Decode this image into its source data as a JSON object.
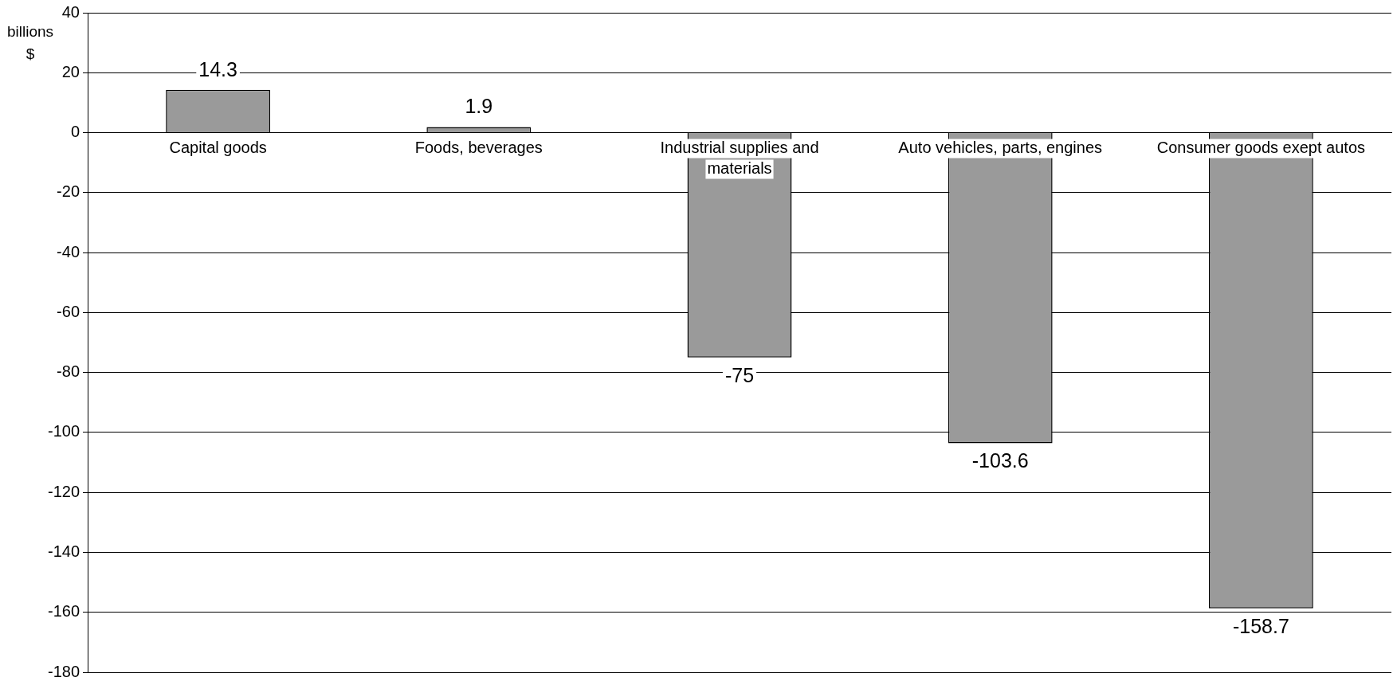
{
  "chart_data": {
    "type": "bar",
    "ylabel": "billions $",
    "categories": [
      "Capital goods",
      "Foods, beverages",
      "Industrial supplies and materials",
      "Auto vehicles, parts, engines",
      "Consumer goods exept autos"
    ],
    "values": [
      14.3,
      1.9,
      -75,
      -103.6,
      -158.7
    ],
    "color": "#9a9a9a",
    "ylim": [
      -180,
      40
    ],
    "yticks": [
      -180,
      -160,
      -140,
      -120,
      -100,
      -80,
      -60,
      -40,
      -20,
      0,
      20,
      40
    ],
    "grid": "y",
    "legend": false,
    "data_labels": true
  }
}
